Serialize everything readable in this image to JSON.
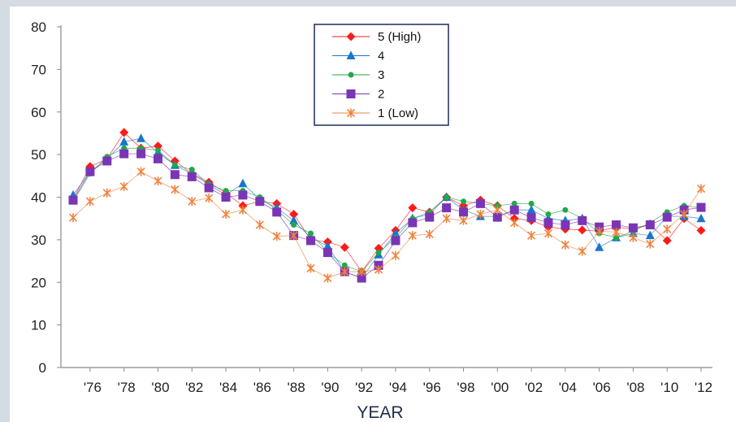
{
  "chart_data": {
    "type": "line",
    "title": "",
    "xlabel": "YEAR",
    "ylabel": "",
    "ylim": [
      0,
      80
    ],
    "yticks": [
      0,
      10,
      20,
      30,
      40,
      50,
      60,
      70,
      80
    ],
    "x": [
      1975,
      1976,
      1977,
      1978,
      1979,
      1980,
      1981,
      1982,
      1983,
      1984,
      1985,
      1986,
      1987,
      1988,
      1989,
      1990,
      1991,
      1992,
      1993,
      1994,
      1995,
      1996,
      1997,
      1998,
      1999,
      2000,
      2001,
      2002,
      2003,
      2004,
      2005,
      2006,
      2007,
      2008,
      2009,
      2010,
      2011,
      2012
    ],
    "xtick_values": [
      1976,
      1978,
      1980,
      1982,
      1984,
      1986,
      1988,
      1990,
      1992,
      1994,
      1996,
      1998,
      2000,
      2002,
      2004,
      2006,
      2008,
      2010,
      2012
    ],
    "xtick_labels": [
      "'76",
      "'78",
      "'80",
      "'82",
      "'84",
      "'86",
      "'88",
      "'90",
      "'92",
      "'94",
      "'96",
      "'98",
      "'00",
      "'02",
      "'04",
      "'06",
      "'08",
      "'10",
      "'12"
    ],
    "grid": false,
    "legend_position": "top-center",
    "series": [
      {
        "name": "5 (High)",
        "color": "#ff1a1a",
        "marker": "diamond",
        "values": [
          39.5,
          47.2,
          49.0,
          55.2,
          51.5,
          52.0,
          48.5,
          45.5,
          43.5,
          41.0,
          38.0,
          39.0,
          38.5,
          36.0,
          30.0,
          29.5,
          28.2,
          22.5,
          28.0,
          32.2,
          37.5,
          36.5,
          40.0,
          38.0,
          39.3,
          38.0,
          35.0,
          34.5,
          33.0,
          32.5,
          32.3,
          32.0,
          33.0,
          32.5,
          33.5,
          29.8,
          35.0,
          32.2
        ]
      },
      {
        "name": "4",
        "color": "#1a76c9",
        "marker": "triangle",
        "values": [
          40.5,
          46.0,
          49.0,
          53.0,
          53.8,
          50.5,
          47.5,
          45.5,
          43.0,
          40.5,
          43.2,
          39.5,
          37.5,
          34.5,
          30.5,
          28.5,
          22.5,
          21.0,
          26.5,
          31.5,
          35.0,
          36.0,
          40.0,
          37.0,
          35.5,
          35.5,
          37.0,
          37.0,
          35.0,
          34.5,
          35.0,
          28.2,
          30.5,
          31.5,
          31.0,
          35.5,
          35.5,
          35.0
        ]
      },
      {
        "name": "3",
        "color": "#21a84a",
        "marker": "circle",
        "values": [
          39.0,
          45.5,
          49.5,
          51.5,
          51.5,
          51.0,
          47.5,
          46.5,
          43.0,
          41.5,
          41.5,
          40.0,
          37.0,
          33.5,
          31.5,
          27.0,
          24.0,
          22.5,
          27.0,
          30.5,
          35.0,
          36.5,
          40.0,
          39.0,
          38.5,
          38.0,
          38.5,
          38.5,
          36.0,
          37.0,
          35.0,
          31.5,
          30.5,
          32.0,
          34.0,
          36.5,
          38.0,
          37.5
        ]
      },
      {
        "name": "2",
        "color": "#7a35b5",
        "marker": "square",
        "values": [
          39.3,
          46.0,
          48.5,
          50.2,
          50.2,
          49.0,
          45.3,
          44.8,
          42.2,
          40.0,
          40.5,
          39.0,
          36.5,
          31.0,
          29.8,
          27.0,
          22.5,
          21.0,
          24.0,
          29.8,
          34.0,
          35.3,
          37.5,
          36.5,
          38.5,
          35.3,
          37.0,
          35.2,
          34.0,
          33.5,
          34.5,
          33.0,
          33.5,
          32.8,
          33.5,
          35.3,
          37.0,
          37.6
        ]
      },
      {
        "name": "1 (Low)",
        "color": "#f0823c",
        "marker": "asterisk",
        "values": [
          35.2,
          39.0,
          41.0,
          42.5,
          46.0,
          43.8,
          41.8,
          39.0,
          39.8,
          36.0,
          37.0,
          33.5,
          30.8,
          31.0,
          23.3,
          21.0,
          22.5,
          22.5,
          23.0,
          26.3,
          31.0,
          31.3,
          35.0,
          34.5,
          36.0,
          37.0,
          34.0,
          31.0,
          31.5,
          28.8,
          27.3,
          32.0,
          31.8,
          30.5,
          29.0,
          32.5,
          36.0,
          42.0
        ]
      }
    ]
  }
}
